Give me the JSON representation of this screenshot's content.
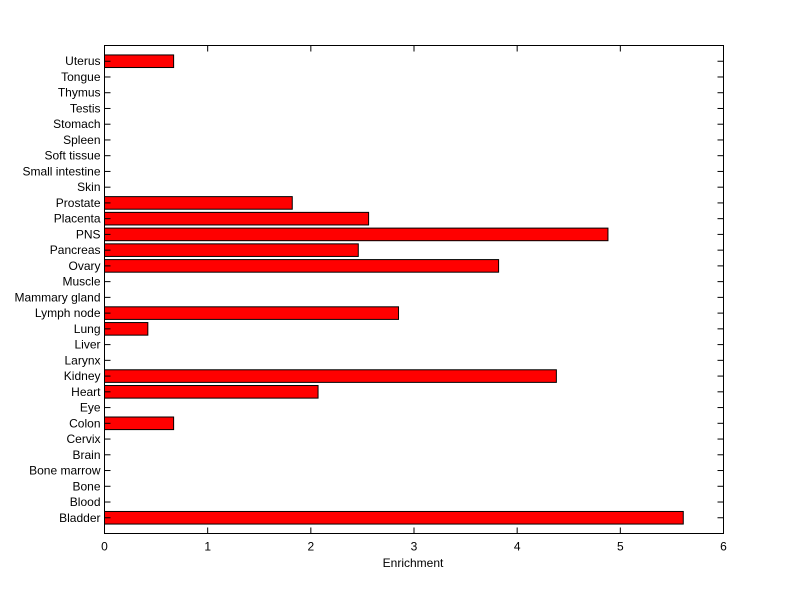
{
  "chart_data": {
    "type": "bar",
    "orientation": "horizontal",
    "title": "",
    "xlabel": "Enrichment",
    "ylabel": "",
    "xlim": [
      0,
      6
    ],
    "xticks": [
      0,
      1,
      2,
      3,
      4,
      5,
      6
    ],
    "grid": false,
    "bar_color": "#ff0000",
    "edge_color": "#000000",
    "categories": [
      "Bladder",
      "Blood",
      "Bone",
      "Bone marrow",
      "Brain",
      "Cervix",
      "Colon",
      "Eye",
      "Heart",
      "Kidney",
      "Larynx",
      "Liver",
      "Lung",
      "Lymph node",
      "Mammary gland",
      "Muscle",
      "Ovary",
      "Pancreas",
      "PNS",
      "Placenta",
      "Prostate",
      "Skin",
      "Small intestine",
      "Soft tissue",
      "Spleen",
      "Stomach",
      "Testis",
      "Thymus",
      "Tongue",
      "Uterus"
    ],
    "values": [
      5.61,
      0,
      0,
      0,
      0,
      0,
      0.67,
      0,
      2.07,
      4.38,
      0,
      0,
      0.42,
      2.85,
      0,
      0,
      3.82,
      2.46,
      4.88,
      2.56,
      1.82,
      0,
      0,
      0,
      0,
      0,
      0,
      0,
      0,
      0.67
    ]
  }
}
